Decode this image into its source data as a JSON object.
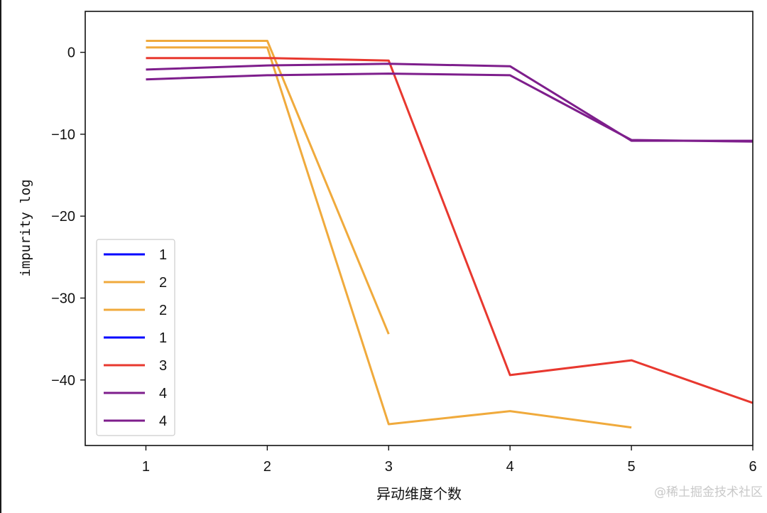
{
  "watermark": "@稀土掘金技术社区",
  "chart_data": {
    "type": "line",
    "xlabel": "异动维度个数",
    "ylabel": "impurity log",
    "xlim": [
      0.5,
      6.0
    ],
    "ylim": [
      -48.0,
      5.0
    ],
    "xticks": [
      1,
      2,
      3,
      4,
      5,
      6
    ],
    "yticks": [
      0,
      -10,
      -20,
      -30,
      -40
    ],
    "ytick_labels": [
      "0",
      "−10",
      "−20",
      "−30",
      "−40"
    ],
    "grid": false,
    "legend": {
      "placement": "lower-left"
    },
    "series": [
      {
        "name": "1",
        "color": "#0000ff",
        "x": [],
        "y": []
      },
      {
        "name": "2",
        "color": "#f0aa3c",
        "x": [
          1,
          2,
          3
        ],
        "y": [
          1.4,
          1.4,
          -34.4
        ]
      },
      {
        "name": "2",
        "color": "#f0aa3c",
        "x": [
          1,
          2,
          3,
          4,
          5
        ],
        "y": [
          0.6,
          0.6,
          -45.4,
          -43.8,
          -45.8
        ]
      },
      {
        "name": "1",
        "color": "#0000ff",
        "x": [],
        "y": []
      },
      {
        "name": "3",
        "color": "#e8382f",
        "x": [
          1,
          2,
          3,
          4,
          5,
          6
        ],
        "y": [
          -0.7,
          -0.7,
          -1.0,
          -39.4,
          -37.6,
          -42.8
        ]
      },
      {
        "name": "4",
        "color": "#7e1e8c",
        "x": [
          1,
          2,
          3,
          4,
          5,
          6
        ],
        "y": [
          -2.1,
          -1.6,
          -1.4,
          -1.7,
          -10.8,
          -10.8
        ]
      },
      {
        "name": "4",
        "color": "#7e1e8c",
        "x": [
          1,
          2,
          3,
          4,
          5,
          6
        ],
        "y": [
          -3.3,
          -2.8,
          -2.6,
          -2.8,
          -10.7,
          -10.9
        ]
      }
    ]
  }
}
